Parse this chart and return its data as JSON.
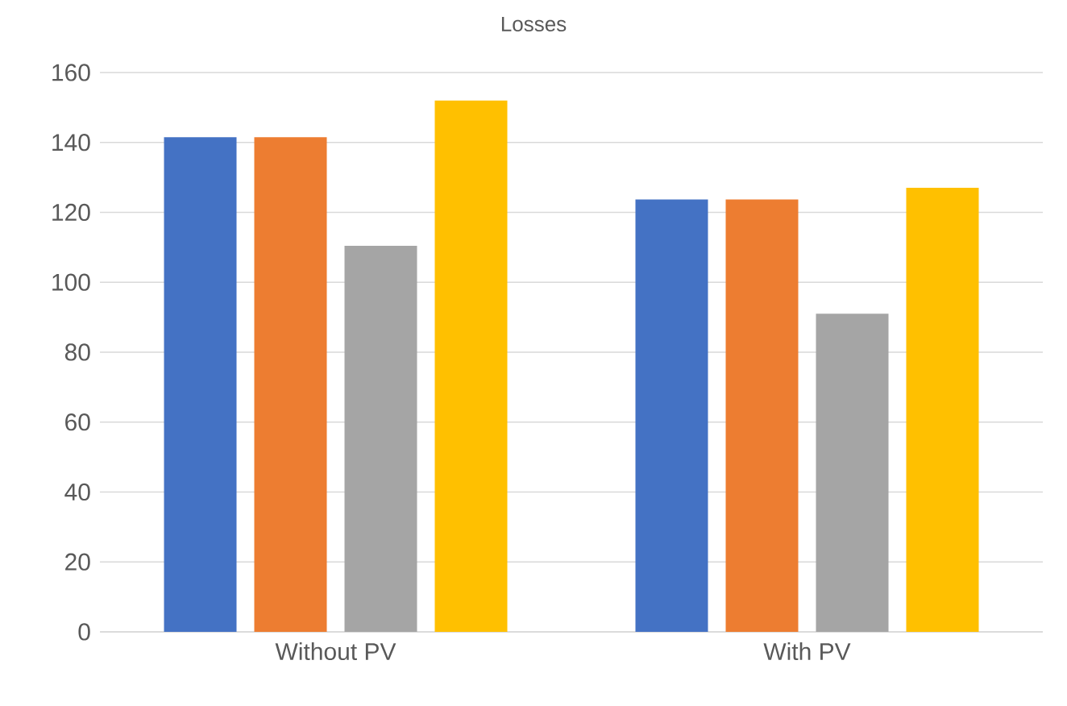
{
  "chart_data": {
    "type": "bar",
    "title": "Losses",
    "categories": [
      "Without PV",
      "With PV"
    ],
    "series": [
      {
        "color": "#4472c4",
        "values": [
          141.5,
          123.7
        ]
      },
      {
        "color": "#ed7d31",
        "values": [
          141.5,
          123.7
        ]
      },
      {
        "color": "#a5a5a5",
        "values": [
          110.4,
          91
        ]
      },
      {
        "color": "#ffc000",
        "values": [
          152,
          127
        ]
      }
    ],
    "ylim": [
      0,
      160
    ],
    "yticks": [
      0,
      20,
      40,
      60,
      80,
      100,
      120,
      140,
      160
    ],
    "grid": "y"
  }
}
